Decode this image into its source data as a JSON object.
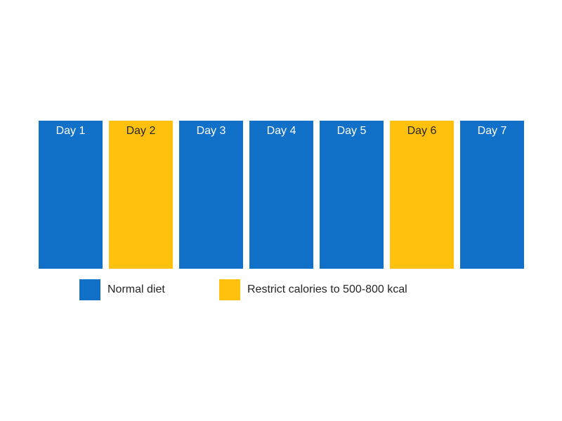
{
  "colors": {
    "normal_diet": "#1170C8",
    "restricted_diet": "#FFC10E",
    "day_label_on_normal": "#FFFFFF",
    "day_label_on_restricted": "#262626",
    "legend_text": "#262626",
    "background": "#FFFFFF"
  },
  "days": [
    {
      "label": "Day 1",
      "diet": "normal"
    },
    {
      "label": "Day 2",
      "diet": "restricted"
    },
    {
      "label": "Day 3",
      "diet": "normal"
    },
    {
      "label": "Day 4",
      "diet": "normal"
    },
    {
      "label": "Day 5",
      "diet": "normal"
    },
    {
      "label": "Day 6",
      "diet": "restricted"
    },
    {
      "label": "Day 7",
      "diet": "normal"
    }
  ],
  "legend": [
    {
      "label": "Normal diet",
      "diet": "normal"
    },
    {
      "label": "Restrict calories to 500-800 kcal",
      "diet": "restricted"
    }
  ]
}
